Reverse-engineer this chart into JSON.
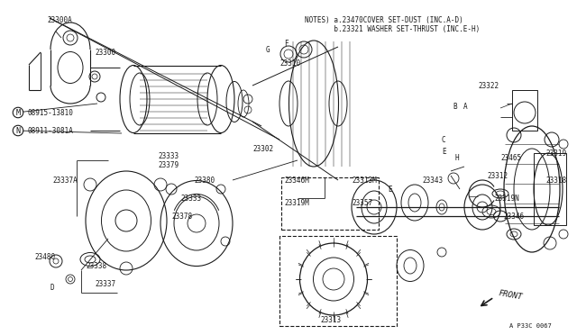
{
  "bg_color": "#ffffff",
  "line_color": "#1a1a1a",
  "notes_line1": "NOTES、a.23470 COVER SET-DUST （INC.A-D）",
  "notes_line2": "       b.23321 WASHER SET-THRUST （INC.E-H）",
  "notes_line1_plain": "NOTES) a.23470COVER SET-DUST (INC.A-D)",
  "notes_line2_plain": "       b.23321 WASHER SET-THRUST (INC.E-H)",
  "diagram_id": "A P33C 0067",
  "front_label": "FRONT"
}
